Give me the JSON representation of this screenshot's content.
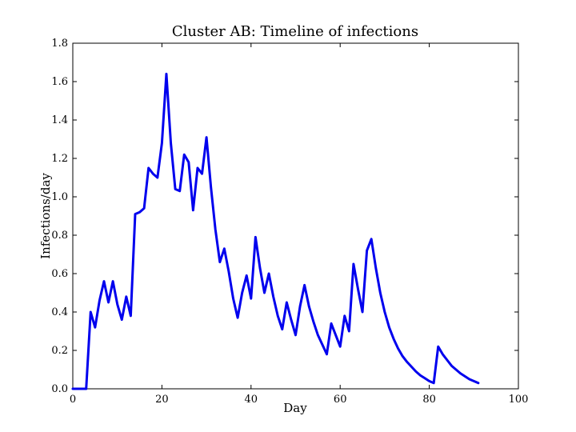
{
  "chart_data": {
    "type": "line",
    "title": "Cluster AB: Timeline of infections",
    "xlabel": "Day",
    "ylabel": "Infections/day",
    "xlim": [
      0,
      100
    ],
    "ylim": [
      0,
      1.8
    ],
    "xticks": [
      "0",
      "20",
      "40",
      "60",
      "80",
      "100"
    ],
    "yticks": [
      "0.0",
      "0.2",
      "0.4",
      "0.6",
      "0.8",
      "1.0",
      "1.2",
      "1.4",
      "1.6",
      "1.8"
    ],
    "grid": false,
    "legend": "none",
    "line_color": "#0000ee",
    "series": [
      {
        "x": [
          0,
          1,
          2,
          3,
          4,
          5,
          6,
          7,
          8,
          9,
          10,
          11,
          12,
          13,
          14,
          15,
          16,
          17,
          18,
          19,
          20,
          21,
          22,
          23,
          24,
          25,
          26,
          27,
          28,
          29,
          30,
          31,
          32,
          33,
          34,
          35,
          36,
          37,
          38,
          39,
          40,
          41,
          42,
          43,
          44,
          45,
          46,
          47,
          48,
          49,
          50,
          51,
          52,
          53,
          54,
          55,
          56,
          57,
          58,
          59,
          60,
          61,
          62,
          63,
          64,
          65,
          66,
          67,
          68,
          69,
          70,
          71,
          72,
          73,
          74,
          75,
          76,
          77,
          78,
          79,
          80,
          81,
          82,
          83,
          84,
          85,
          86,
          87,
          88,
          89,
          90,
          91
        ],
        "y": [
          0.0,
          0.0,
          0.0,
          0.0,
          0.4,
          0.32,
          0.46,
          0.56,
          0.45,
          0.56,
          0.44,
          0.36,
          0.48,
          0.38,
          0.91,
          0.92,
          0.94,
          1.15,
          1.12,
          1.1,
          1.28,
          1.64,
          1.28,
          1.04,
          1.03,
          1.22,
          1.18,
          0.93,
          1.15,
          1.12,
          1.31,
          1.05,
          0.83,
          0.66,
          0.73,
          0.61,
          0.47,
          0.37,
          0.5,
          0.59,
          0.47,
          0.79,
          0.63,
          0.5,
          0.6,
          0.48,
          0.38,
          0.31,
          0.45,
          0.36,
          0.28,
          0.43,
          0.54,
          0.43,
          0.35,
          0.28,
          0.23,
          0.18,
          0.34,
          0.28,
          0.22,
          0.38,
          0.3,
          0.65,
          0.52,
          0.4,
          0.72,
          0.78,
          0.63,
          0.5,
          0.4,
          0.32,
          0.26,
          0.21,
          0.17,
          0.14,
          0.115,
          0.09,
          0.07,
          0.055,
          0.04,
          0.03,
          0.22,
          0.18,
          0.15,
          0.12,
          0.1,
          0.08,
          0.065,
          0.05,
          0.04,
          0.03
        ]
      }
    ]
  }
}
